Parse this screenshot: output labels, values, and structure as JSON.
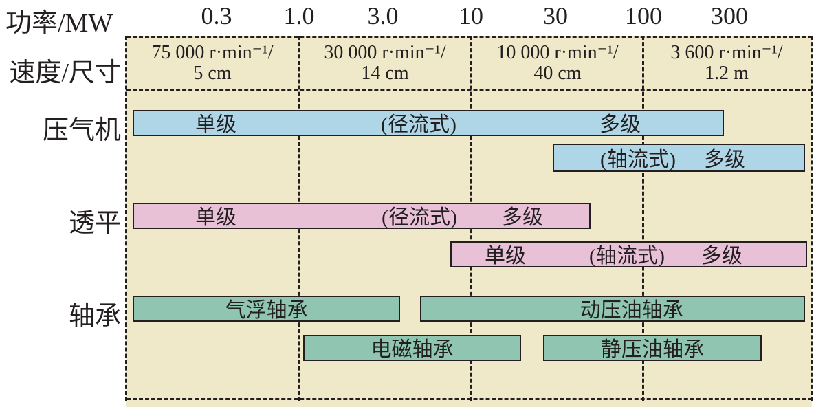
{
  "axis": {
    "power_label": "功率/MW",
    "power_ticks": [
      "0.3",
      "1.0",
      "3.0",
      "10",
      "30",
      "100",
      "300"
    ],
    "speed_size_label": "速度/尺寸",
    "speed_size_cells": [
      {
        "line1": "75 000 r·min⁻¹/",
        "line2": "5 cm"
      },
      {
        "line1": "30 000 r·min⁻¹/",
        "line2": "14 cm"
      },
      {
        "line1": "10 000 r·min⁻¹/",
        "line2": "40 cm"
      },
      {
        "line1": "3 600 r·min⁻¹/",
        "line2": "1.2 m"
      }
    ]
  },
  "rows": {
    "compressor": {
      "label": "压气机",
      "radial": {
        "texts": [
          "单级",
          "(径流式)",
          "多级"
        ],
        "range_mw": [
          0.15,
          200
        ]
      },
      "axial": {
        "texts": [
          "(轴流式)",
          "多级"
        ],
        "range_mw": [
          25,
          600
        ]
      }
    },
    "turbine": {
      "label": "透平",
      "radial": {
        "texts": [
          "单级",
          "(径流式)",
          "多级"
        ],
        "range_mw": [
          0.15,
          35
        ]
      },
      "axial": {
        "texts": [
          "单级",
          "(轴流式)",
          "多级"
        ],
        "range_mw": [
          8,
          600
        ]
      }
    },
    "bearing": {
      "label": "轴承",
      "air": {
        "text": "气浮轴承",
        "range_mw": [
          0.15,
          2.5
        ]
      },
      "hydrodynamic": {
        "text": "动压油轴承",
        "range_mw": [
          3.5,
          600
        ]
      },
      "magnetic": {
        "text": "电磁轴承",
        "range_mw": [
          1.05,
          20
        ]
      },
      "hydrostatic": {
        "text": "静压油轴承",
        "range_mw": [
          27,
          300
        ]
      }
    }
  },
  "colors": {
    "background": "#efe9c9",
    "compressor": "#aed6e7",
    "turbine": "#e9c1d7",
    "bearing": "#8fc5b1"
  }
}
